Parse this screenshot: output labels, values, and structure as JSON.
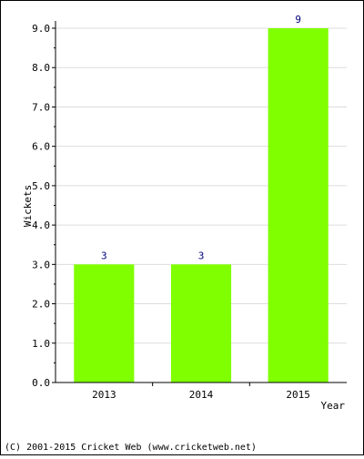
{
  "footer_text": "(C) 2001-2015 Cricket Web (www.cricketweb.net)",
  "chart_data": {
    "type": "bar",
    "title": "",
    "xlabel": "Year",
    "ylabel": "Wickets",
    "categories": [
      "2013",
      "2014",
      "2015"
    ],
    "values": [
      3,
      3,
      9
    ],
    "data_labels": [
      "3",
      "3",
      "9"
    ],
    "ylim": [
      0,
      9
    ],
    "yticks": [
      "0.0",
      "1.0",
      "2.0",
      "3.0",
      "4.0",
      "5.0",
      "6.0",
      "7.0",
      "8.0",
      "9.0"
    ],
    "grid": true,
    "colors": {
      "bar": "#80ff00",
      "data_label": "#000080",
      "grid": "#dddddd",
      "axis": "#000000"
    }
  }
}
